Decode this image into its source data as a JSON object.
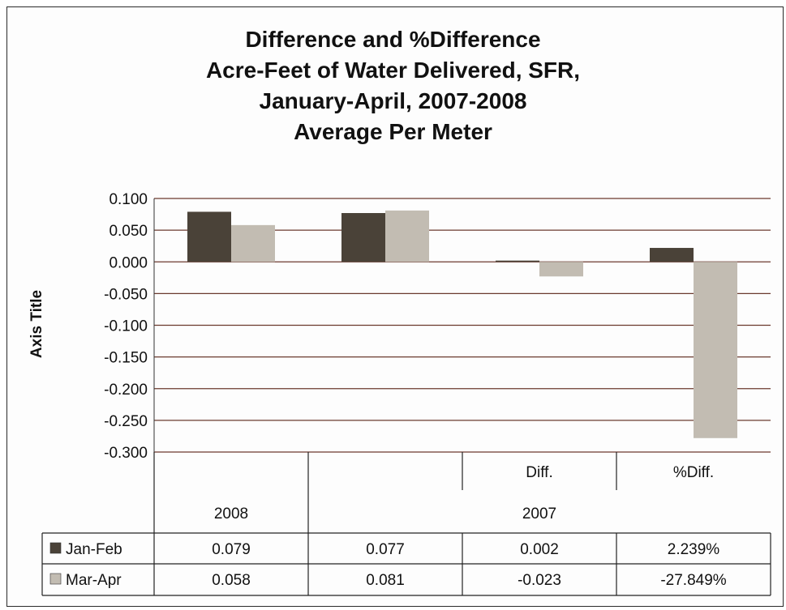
{
  "chart_data": {
    "type": "bar",
    "title_lines": [
      "Difference and %Difference",
      "Acre-Feet of Water Delivered, SFR,",
      "January-April, 2007-2008",
      "Average Per Meter"
    ],
    "ylabel": "Axis Title",
    "ylim": [
      -0.3,
      0.1
    ],
    "ytick_step": 0.05,
    "ytick_labels": [
      "0.100",
      "0.050",
      "0.000",
      "-0.050",
      "-0.100",
      "-0.150",
      "-0.200",
      "-0.250",
      "-0.300"
    ],
    "grid": true,
    "category_header_top": [
      "",
      "",
      "Diff.",
      "%Diff."
    ],
    "category_header_bottom": [
      "2008",
      "",
      "2007",
      ""
    ],
    "series": [
      {
        "name": "Jan-Feb",
        "color": "#4a4238",
        "values": [
          0.079,
          0.077,
          0.002,
          0.022
        ],
        "table_labels": [
          "0.079",
          "0.077",
          "0.002",
          "2.239%"
        ]
      },
      {
        "name": "Mar-Apr",
        "color": "#c2bcb2",
        "values": [
          0.058,
          0.081,
          -0.023,
          -0.278
        ],
        "table_labels": [
          "0.058",
          "0.081",
          "-0.023",
          "-27.849%"
        ]
      }
    ],
    "legend_placement": "data-table"
  }
}
